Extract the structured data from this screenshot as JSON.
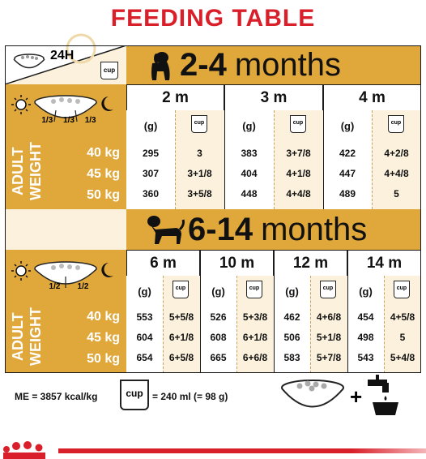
{
  "title": "FEEDING TABLE",
  "corner": {
    "label": "24H",
    "cup": "cup"
  },
  "band1": {
    "range": "2-4",
    "unit": "months",
    "ages": [
      "2 m",
      "3 m",
      "4 m"
    ],
    "meal_split": [
      "1/3",
      "1/3",
      "1/3"
    ],
    "rows": [
      {
        "weight": "40 kg",
        "values": [
          [
            "295",
            "3"
          ],
          [
            "383",
            "3+7/8"
          ],
          [
            "422",
            "4+2/8"
          ]
        ]
      },
      {
        "weight": "45 kg",
        "values": [
          [
            "307",
            "3+1/8"
          ],
          [
            "404",
            "4+1/8"
          ],
          [
            "447",
            "4+4/8"
          ]
        ]
      },
      {
        "weight": "50 kg",
        "values": [
          [
            "360",
            "3+5/8"
          ],
          [
            "448",
            "4+4/8"
          ],
          [
            "489",
            "5"
          ]
        ]
      }
    ]
  },
  "band2": {
    "range": "6-14",
    "unit": "months",
    "ages": [
      "6 m",
      "10 m",
      "12 m",
      "14 m"
    ],
    "meal_split": [
      "1/2",
      "1/2"
    ],
    "rows": [
      {
        "weight": "40 kg",
        "values": [
          [
            "553",
            "5+5/8"
          ],
          [
            "526",
            "5+3/8"
          ],
          [
            "462",
            "4+6/8"
          ],
          [
            "454",
            "4+5/8"
          ]
        ]
      },
      {
        "weight": "45 kg",
        "values": [
          [
            "604",
            "6+1/8"
          ],
          [
            "608",
            "6+1/8"
          ],
          [
            "506",
            "5+1/8"
          ],
          [
            "498",
            "5"
          ]
        ]
      },
      {
        "weight": "50 kg",
        "values": [
          [
            "654",
            "6+5/8"
          ],
          [
            "665",
            "6+6/8"
          ],
          [
            "583",
            "5+7/8"
          ],
          [
            "543",
            "5+4/8"
          ]
        ]
      }
    ]
  },
  "labels": {
    "gram": "(g)",
    "cup": "cup",
    "adult": "ADULT",
    "weight": "WEIGHT"
  },
  "footer": {
    "me": "ME = 3857 kcal/kg",
    "cup_label": "cup",
    "cup_eq": "= 240 ml (= 98 g)",
    "plus": "+"
  },
  "colors": {
    "accent": "#e0a83b",
    "cream": "#fbf1dc",
    "brand_red": "#d9202a"
  }
}
